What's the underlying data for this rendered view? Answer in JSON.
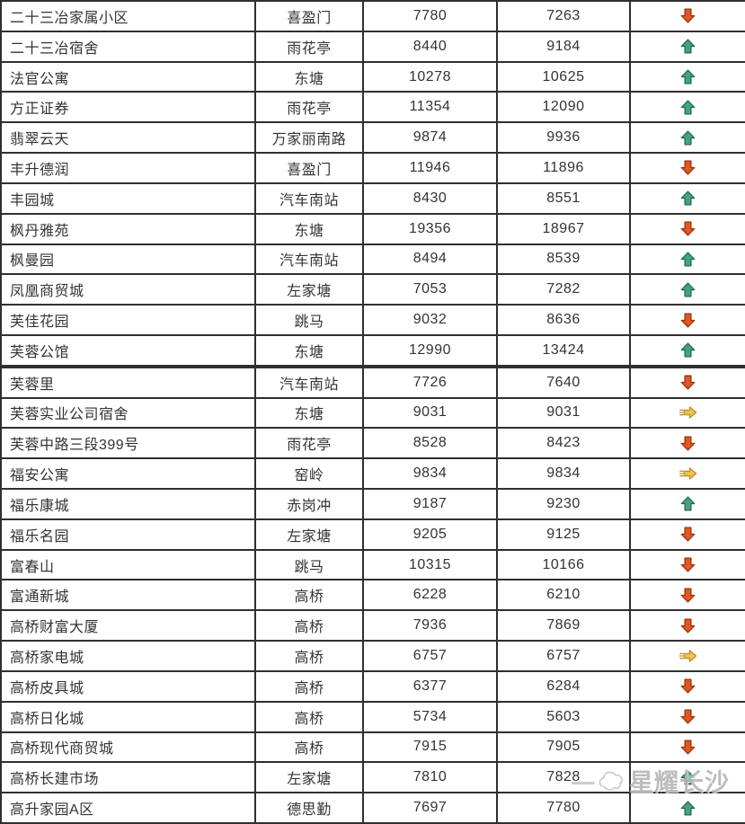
{
  "table": {
    "rows": [
      {
        "name": "二十三冶家属小区",
        "district": "喜盈门",
        "price_prev": "7780",
        "price_curr": "7263",
        "trend": "down"
      },
      {
        "name": "二十三冶宿舍",
        "district": "雨花亭",
        "price_prev": "8440",
        "price_curr": "9184",
        "trend": "up"
      },
      {
        "name": "法官公寓",
        "district": "东塘",
        "price_prev": "10278",
        "price_curr": "10625",
        "trend": "up"
      },
      {
        "name": "方正证券",
        "district": "雨花亭",
        "price_prev": "11354",
        "price_curr": "12090",
        "trend": "up"
      },
      {
        "name": "翡翠云天",
        "district": "万家丽南路",
        "price_prev": "9874",
        "price_curr": "9936",
        "trend": "up"
      },
      {
        "name": "丰升德润",
        "district": "喜盈门",
        "price_prev": "11946",
        "price_curr": "11896",
        "trend": "down"
      },
      {
        "name": "丰园城",
        "district": "汽车南站",
        "price_prev": "8430",
        "price_curr": "8551",
        "trend": "up"
      },
      {
        "name": "枫丹雅苑",
        "district": "东塘",
        "price_prev": "19356",
        "price_curr": "18967",
        "trend": "down"
      },
      {
        "name": "枫曼园",
        "district": "汽车南站",
        "price_prev": "8494",
        "price_curr": "8539",
        "trend": "up"
      },
      {
        "name": "凤凰商贸城",
        "district": "左家塘",
        "price_prev": "7053",
        "price_curr": "7282",
        "trend": "up"
      },
      {
        "name": "芙佳花园",
        "district": "跳马",
        "price_prev": "9032",
        "price_curr": "8636",
        "trend": "down"
      },
      {
        "name": "芙蓉公馆",
        "district": "东塘",
        "price_prev": "12990",
        "price_curr": "13424",
        "trend": "up"
      },
      {
        "name": "芙蓉里",
        "district": "汽车南站",
        "price_prev": "7726",
        "price_curr": "7640",
        "trend": "down"
      },
      {
        "name": "芙蓉实业公司宿舍",
        "district": "东塘",
        "price_prev": "9031",
        "price_curr": "9031",
        "trend": "flat"
      },
      {
        "name": "芙蓉中路三段399号",
        "district": "雨花亭",
        "price_prev": "8528",
        "price_curr": "8423",
        "trend": "down"
      },
      {
        "name": "福安公寓",
        "district": "窑岭",
        "price_prev": "9834",
        "price_curr": "9834",
        "trend": "flat"
      },
      {
        "name": "福乐康城",
        "district": "赤岗冲",
        "price_prev": "9187",
        "price_curr": "9230",
        "trend": "up"
      },
      {
        "name": "福乐名园",
        "district": "左家塘",
        "price_prev": "9205",
        "price_curr": "9125",
        "trend": "down"
      },
      {
        "name": "富春山",
        "district": "跳马",
        "price_prev": "10315",
        "price_curr": "10166",
        "trend": "down"
      },
      {
        "name": "富通新城",
        "district": "高桥",
        "price_prev": "6228",
        "price_curr": "6210",
        "trend": "down"
      },
      {
        "name": "高桥财富大厦",
        "district": "高桥",
        "price_prev": "7936",
        "price_curr": "7869",
        "trend": "down"
      },
      {
        "name": "高桥家电城",
        "district": "高桥",
        "price_prev": "6757",
        "price_curr": "6757",
        "trend": "flat"
      },
      {
        "name": "高桥皮具城",
        "district": "高桥",
        "price_prev": "6377",
        "price_curr": "6284",
        "trend": "down"
      },
      {
        "name": "高桥日化城",
        "district": "高桥",
        "price_prev": "5734",
        "price_curr": "5603",
        "trend": "down"
      },
      {
        "name": "高桥现代商贸城",
        "district": "高桥",
        "price_prev": "7915",
        "price_curr": "7905",
        "trend": "down"
      },
      {
        "name": "高桥长建市场",
        "district": "左家塘",
        "price_prev": "7810",
        "price_curr": "7828",
        "trend": "up"
      },
      {
        "name": "高升家园A区",
        "district": "德思勤",
        "price_prev": "7697",
        "price_curr": "7780",
        "trend": "up"
      }
    ],
    "section_break_after_row": 12
  },
  "trend_colors": {
    "up": {
      "fill": "#44a184",
      "stroke": "#1f6a4e"
    },
    "down": {
      "fill": "#e0571f",
      "stroke": "#97330c"
    },
    "flat": {
      "fill": "#eec14f",
      "stroke": "#b98f2b"
    }
  },
  "watermark": {
    "text": "星耀长沙"
  }
}
